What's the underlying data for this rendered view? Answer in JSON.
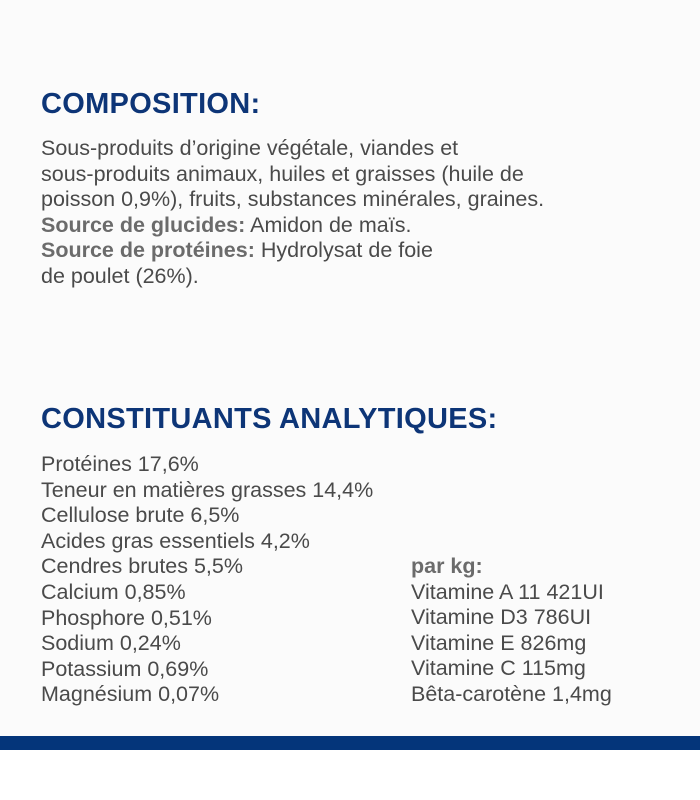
{
  "composition": {
    "title": "COMPOSITION:",
    "lines": [
      "Sous-produits d’origine végétale, viandes et",
      "sous-produits animaux, huiles et graisses (huile de",
      "poisson 0,9%), fruits, substances minérales, graines."
    ],
    "carb_label": "Source de glucides:",
    "carb_value": " Amidon de maïs.",
    "protein_label": "Source de protéines:",
    "protein_value": " Hydrolysat de foie",
    "protein_value_cont": "de poulet (26%)."
  },
  "analytical": {
    "title": "CONSTITUANTS ANALYTIQUES:",
    "left": [
      "Protéines 17,6%",
      "Teneur en matières grasses 14,4%",
      "Cellulose brute 6,5%",
      "Acides gras essentiels 4,2%",
      "Cendres brutes 5,5%",
      "Calcium 0,85%",
      "Phosphore 0,51%",
      "Sodium 0,24%",
      "Potassium 0,69%",
      "Magnésium 0,07%"
    ],
    "per_kg_label": "par kg:",
    "right": [
      "Vitamine A 11 421UI",
      "Vitamine D3 786UI",
      "Vitamine E 826mg",
      "Vitamine C 115mg",
      "Bêta-carotène 1,4mg"
    ]
  },
  "colors": {
    "accent": "#0d3577",
    "band": "#04357a",
    "text": "#4a4a4a"
  }
}
